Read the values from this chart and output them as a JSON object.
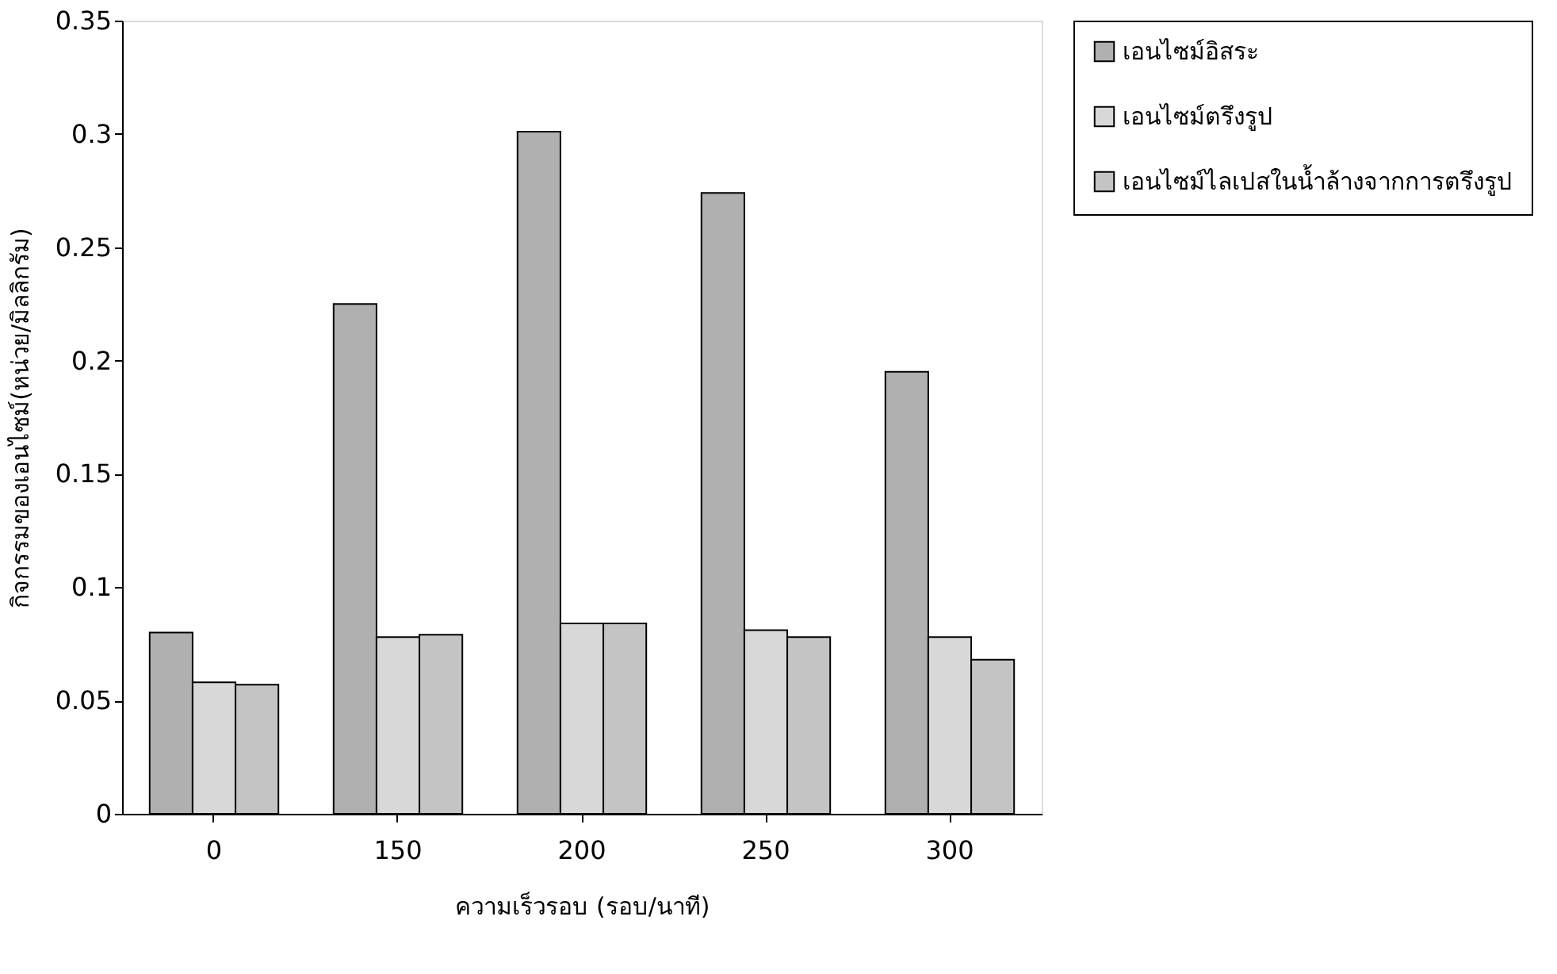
{
  "chart_data": {
    "type": "bar",
    "xlabel": "ความเร็วรอบ (รอบ/นาที)",
    "ylabel": "กิจกรรมของเอนไซม์(หน่วย/มิลลิกรัม)",
    "categories": [
      "0",
      "150",
      "200",
      "250",
      "300"
    ],
    "series": [
      {
        "name": "เอนไซม์อิสระ",
        "color": "#b0b0b0",
        "values": [
          0.08,
          0.225,
          0.301,
          0.274,
          0.195
        ]
      },
      {
        "name": "เอนไซม์ตรึงรูป",
        "color": "#d8d8d8",
        "values": [
          0.058,
          0.078,
          0.084,
          0.081,
          0.078
        ]
      },
      {
        "name": "เอนไซม์ไลเปสในน้ำล้างจากการตรึงรูป",
        "color": "#c4c4c4",
        "values": [
          0.057,
          0.079,
          0.084,
          0.078,
          0.068
        ]
      }
    ],
    "ylim": [
      0,
      0.35
    ],
    "yticks": [
      0,
      0.05,
      0.1,
      0.15,
      0.2,
      0.25,
      0.3,
      0.35
    ],
    "grid": false,
    "legend": "right"
  }
}
